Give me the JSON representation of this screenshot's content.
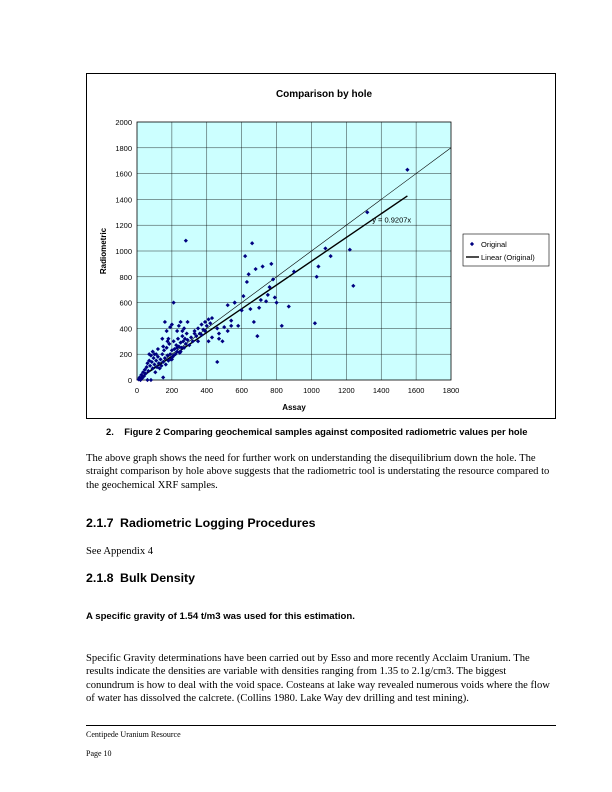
{
  "chart_data": {
    "type": "scatter",
    "title": "Comparison by hole",
    "xlabel": "Assay",
    "ylabel": "Radiometric",
    "xlim": [
      0,
      1800
    ],
    "ylim": [
      0,
      2000
    ],
    "xticks": [
      "0",
      "200",
      "400",
      "600",
      "800",
      "1000",
      "1200",
      "1400",
      "1600",
      "1800"
    ],
    "yticks": [
      "0",
      "200",
      "400",
      "600",
      "800",
      "1000",
      "1200",
      "1400",
      "1600",
      "1800",
      "2000"
    ],
    "grid": true,
    "legend_position": "right",
    "legend": [
      "Original",
      "Linear (Original)"
    ],
    "trend_label": "y = 0.9207x",
    "trend_slope": 0.9207,
    "reference_line_slope": 1,
    "colors": {
      "plot_bg": "#ccffff",
      "marker": "#000080",
      "trend": "#000000",
      "grid": "#000000"
    },
    "series": [
      {
        "name": "Original",
        "points": [
          [
            10,
            5
          ],
          [
            15,
            20
          ],
          [
            20,
            0
          ],
          [
            25,
            40
          ],
          [
            30,
            15
          ],
          [
            35,
            60
          ],
          [
            40,
            30
          ],
          [
            45,
            80
          ],
          [
            50,
            50
          ],
          [
            55,
            100
          ],
          [
            60,
            0
          ],
          [
            60,
            130
          ],
          [
            65,
            70
          ],
          [
            70,
            150
          ],
          [
            75,
            110
          ],
          [
            80,
            0
          ],
          [
            80,
            190
          ],
          [
            85,
            140
          ],
          [
            90,
            90
          ],
          [
            95,
            170
          ],
          [
            100,
            120
          ],
          [
            100,
            200
          ],
          [
            105,
            60
          ],
          [
            110,
            150
          ],
          [
            115,
            100
          ],
          [
            120,
            180
          ],
          [
            125,
            130
          ],
          [
            130,
            90
          ],
          [
            135,
            160
          ],
          [
            140,
            110
          ],
          [
            145,
            200
          ],
          [
            150,
            140
          ],
          [
            150,
            20
          ],
          [
            155,
            230
          ],
          [
            160,
            170
          ],
          [
            165,
            120
          ],
          [
            170,
            250
          ],
          [
            175,
            190
          ],
          [
            180,
            150
          ],
          [
            185,
            280
          ],
          [
            190,
            200
          ],
          [
            195,
            160
          ],
          [
            200,
            230
          ],
          [
            205,
            180
          ],
          [
            210,
            300
          ],
          [
            215,
            240
          ],
          [
            220,
            200
          ],
          [
            225,
            270
          ],
          [
            230,
            220
          ],
          [
            235,
            320
          ],
          [
            240,
            260
          ],
          [
            245,
            210
          ],
          [
            250,
            290
          ],
          [
            255,
            250
          ],
          [
            260,
            340
          ],
          [
            265,
            300
          ],
          [
            270,
            250
          ],
          [
            275,
            320
          ],
          [
            280,
            280
          ],
          [
            285,
            360
          ],
          [
            290,
            310
          ],
          [
            300,
            270
          ],
          [
            310,
            330
          ],
          [
            320,
            300
          ],
          [
            330,
            380
          ],
          [
            340,
            340
          ],
          [
            350,
            400
          ],
          [
            360,
            360
          ],
          [
            370,
            430
          ],
          [
            380,
            390
          ],
          [
            390,
            450
          ],
          [
            400,
            420
          ],
          [
            410,
            470
          ],
          [
            420,
            440
          ],
          [
            430,
            480
          ],
          [
            200,
            430
          ],
          [
            210,
            600
          ],
          [
            230,
            380
          ],
          [
            240,
            420
          ],
          [
            250,
            450
          ],
          [
            270,
            400
          ],
          [
            180,
            320
          ],
          [
            190,
            410
          ],
          [
            160,
            450
          ],
          [
            170,
            380
          ],
          [
            175,
            300
          ],
          [
            145,
            320
          ],
          [
            150,
            260
          ],
          [
            120,
            240
          ],
          [
            110,
            200
          ],
          [
            280,
            1080
          ],
          [
            260,
            380
          ],
          [
            290,
            450
          ],
          [
            460,
            140
          ],
          [
            470,
            320
          ],
          [
            490,
            300
          ],
          [
            500,
            410
          ],
          [
            520,
            580
          ],
          [
            540,
            460
          ],
          [
            560,
            600
          ],
          [
            580,
            420
          ],
          [
            600,
            540
          ],
          [
            610,
            650
          ],
          [
            620,
            960
          ],
          [
            630,
            760
          ],
          [
            640,
            820
          ],
          [
            650,
            550
          ],
          [
            660,
            1060
          ],
          [
            670,
            450
          ],
          [
            680,
            860
          ],
          [
            690,
            340
          ],
          [
            700,
            560
          ],
          [
            710,
            620
          ],
          [
            720,
            880
          ],
          [
            740,
            610
          ],
          [
            750,
            660
          ],
          [
            760,
            720
          ],
          [
            770,
            900
          ],
          [
            780,
            780
          ],
          [
            790,
            640
          ],
          [
            800,
            600
          ],
          [
            830,
            420
          ],
          [
            870,
            570
          ],
          [
            900,
            840
          ],
          [
            1020,
            440
          ],
          [
            1030,
            800
          ],
          [
            1040,
            880
          ],
          [
            1080,
            1020
          ],
          [
            1110,
            960
          ],
          [
            1220,
            1010
          ],
          [
            1240,
            730
          ],
          [
            1320,
            1300
          ],
          [
            1550,
            1630
          ],
          [
            560,
            600
          ],
          [
            520,
            380
          ],
          [
            540,
            420
          ],
          [
            470,
            360
          ],
          [
            460,
            400
          ],
          [
            430,
            330
          ],
          [
            410,
            300
          ],
          [
            330,
            360
          ],
          [
            350,
            300
          ],
          [
            370,
            350
          ],
          [
            390,
            380
          ],
          [
            200,
            160
          ],
          [
            210,
            190
          ],
          [
            230,
            250
          ],
          [
            250,
            220
          ],
          [
            70,
            200
          ],
          [
            90,
            220
          ]
        ]
      }
    ]
  },
  "page": {
    "caption": "2.    Figure 2 Comparing geochemical samples against composited radiometric values per hole",
    "para1": "The above graph shows the need for further work on understanding the disequilibrium down the hole. The straight comparison by hole above suggests that the radiometric tool is understating the resource compared to the geochemical XRF samples.",
    "h217_num": "2.1.7",
    "h217_title": "Radiometric Logging Procedures",
    "appendix_note": "See Appendix 4",
    "h218_num": "2.1.8",
    "h218_title": "Bulk Density",
    "bold_note": "A specific gravity of 1.54 t/m3 was used for this estimation.",
    "para2": "Specific Gravity determinations have been carried out by Esso and more recently Acclaim Uranium. The results indicate the densities are variable with densities ranging from 1.35 to 2.1g/cm3. The biggest conundrum is how to deal with the void space. Costeans at lake way revealed numerous voids where the flow of water has dissolved the calcrete. (Collins 1980. Lake Way dev drilling and test mining).",
    "footer_title": "Centipede Uranium Resource",
    "footer_page": "Page 10"
  }
}
